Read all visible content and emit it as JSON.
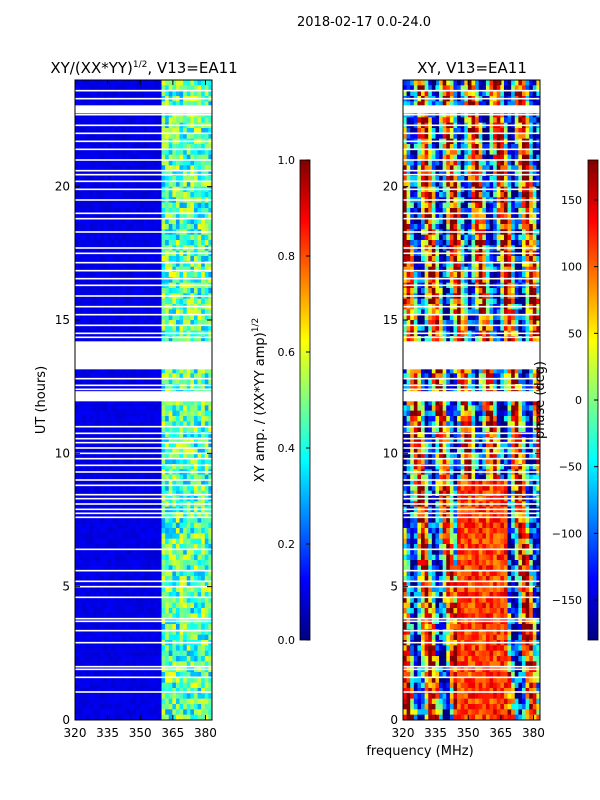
{
  "figure": {
    "suptitle": "2018-02-17 0.0-24.0",
    "xlabel": "frequency (MHz)"
  },
  "chart_data": [
    {
      "type": "heatmap",
      "title_main": "XY/(XX*YY)",
      "title_exp": "1/2",
      "title_rest": ", V13=EA11",
      "xlabel": "",
      "ylabel": "UT (hours)",
      "xlim": [
        320,
        383
      ],
      "ylim": [
        0,
        24
      ],
      "xticks": [
        320,
        335,
        350,
        365,
        380
      ],
      "yticks": [
        0,
        5,
        10,
        15,
        20
      ],
      "colormap": "jet",
      "colorbar": {
        "label_main": "XY amp. / (XX*YY amp)",
        "label_exp": "1/2",
        "range": [
          0.0,
          1.0
        ],
        "ticks": [
          "0.0",
          "0.2",
          "0.4",
          "0.6",
          "0.8",
          "1.0"
        ],
        "tick_values": [
          0.0,
          0.2,
          0.4,
          0.6,
          0.8,
          1.0
        ]
      },
      "low_band_value": 0.08,
      "high_band_start_mhz": 360,
      "high_band_value": 0.45
    },
    {
      "type": "heatmap",
      "title_main": "XY, V13=EA11",
      "xlabel": "",
      "ylabel": "",
      "xlim": [
        320,
        383
      ],
      "ylim": [
        0,
        24
      ],
      "xticks": [
        320,
        335,
        350,
        365,
        380
      ],
      "yticks": [
        0,
        5,
        10,
        15,
        20
      ],
      "colormap": "jet",
      "colorbar": {
        "label_main": "phase (deg)",
        "range": [
          -180,
          180
        ],
        "ticks": [
          "150",
          "100",
          "50",
          "0",
          "−50",
          "−100",
          "−150"
        ],
        "tick_values": [
          150,
          100,
          50,
          0,
          -50,
          -100,
          -150
        ]
      }
    }
  ],
  "flagged_hours": [
    1.05,
    1.6,
    1.9,
    2.0,
    2.9,
    3.35,
    3.7,
    3.8,
    4.6,
    5.0,
    5.2,
    5.6,
    6.4,
    7.6,
    7.75,
    7.9,
    8.1,
    8.3,
    8.45,
    8.8,
    9.0,
    9.3,
    9.55,
    9.8,
    10.0,
    10.2,
    10.4,
    10.55,
    10.75,
    11.0,
    12.05,
    12.3,
    12.4,
    12.55,
    12.8,
    13.55,
    13.7,
    14.1,
    14.35,
    14.5,
    14.8,
    15.2,
    15.5,
    15.9,
    16.3,
    16.55,
    16.85,
    17.15,
    17.5,
    17.7,
    18.3,
    18.8,
    19.0,
    19.5,
    19.9,
    20.2,
    20.45,
    20.6,
    21.0,
    21.4,
    21.7,
    22.0,
    22.3,
    22.7,
    23.0,
    23.3,
    23.6
  ],
  "flagged_blocks": [
    [
      11.95,
      12.3
    ],
    [
      13.15,
      14.2
    ],
    [
      22.75,
      23.05
    ]
  ]
}
